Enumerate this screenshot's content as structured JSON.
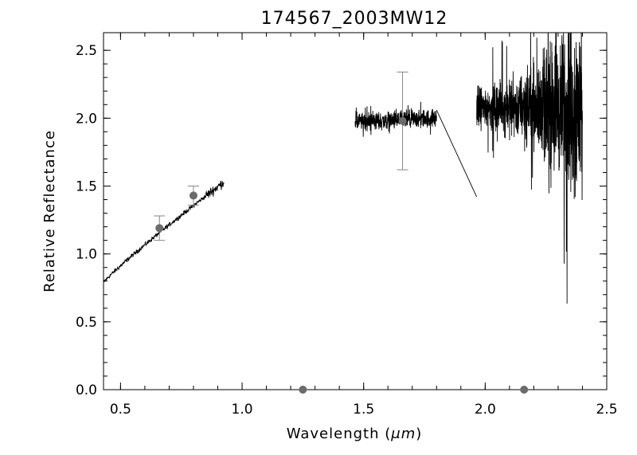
{
  "chart_data": {
    "type": "line",
    "title": "174567_2003MW12",
    "xlabel_prefix": "Wavelength (",
    "xlabel_unit": "μm",
    "xlabel_suffix": ")",
    "ylabel": "Relative Reflectance",
    "xlim": [
      0.43,
      2.5
    ],
    "ylim": [
      0.0,
      2.63
    ],
    "xticks": [
      0.5,
      1.0,
      1.5,
      2.0,
      2.5
    ],
    "xtick_labels": [
      "0.5",
      "1.0",
      "1.5",
      "2.0",
      "2.5"
    ],
    "yticks": [
      0.0,
      0.5,
      1.0,
      1.5,
      2.0,
      2.5
    ],
    "ytick_labels": [
      "0.0",
      "0.5",
      "1.0",
      "1.5",
      "2.0",
      "2.5"
    ],
    "grid": false,
    "series": [
      {
        "kind": "spectrum-visible",
        "color": "#000000",
        "x_start": 0.43,
        "x_end": 0.925,
        "y_start": 0.79,
        "y_end": 1.53,
        "noise": 0.025
      },
      {
        "kind": "spectrum-h-band",
        "color": "#000000",
        "x_start": 1.465,
        "x_end": 1.8,
        "y_mean": 1.97,
        "noise": 0.1
      },
      {
        "kind": "spectrum-connector",
        "color": "#000000",
        "x": [
          1.8,
          1.965
        ],
        "y": [
          2.06,
          1.42
        ]
      },
      {
        "kind": "spectrum-k-band",
        "color": "#000000",
        "x_start": 1.965,
        "x_end": 2.4,
        "y_mean": 2.08,
        "noise_start": 0.22,
        "noise_end": 1.1
      }
    ],
    "photometry": {
      "color": "#6b6b6b",
      "points": [
        {
          "x": 0.66,
          "y": 1.19,
          "err": 0.09
        },
        {
          "x": 0.8,
          "y": 1.43,
          "err": 0.07
        },
        {
          "x": 1.66,
          "y": 1.98,
          "err": 0.36
        },
        {
          "x": 1.25,
          "y": 0.0,
          "err": 0
        },
        {
          "x": 2.16,
          "y": 0.0,
          "err": 0
        }
      ]
    }
  }
}
